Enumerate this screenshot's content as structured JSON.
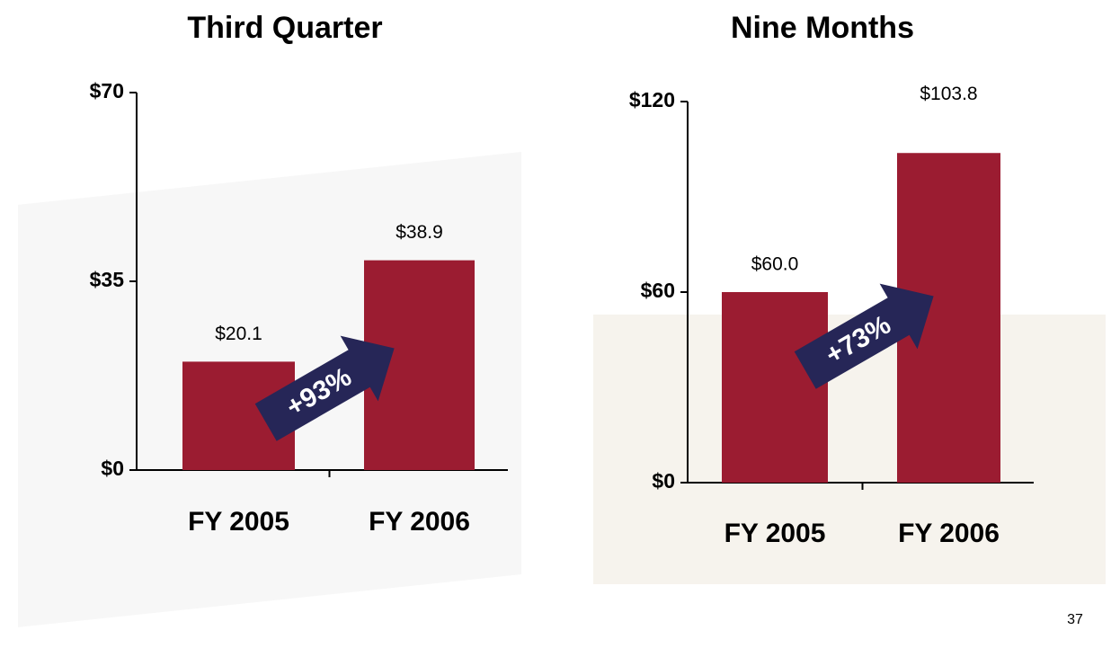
{
  "chart_data": [
    {
      "type": "bar",
      "title": "Third Quarter",
      "categories": [
        "FY 2005",
        "FY 2006"
      ],
      "values": [
        20.1,
        38.9
      ],
      "value_labels": [
        "$20.1",
        "$38.9"
      ],
      "color": "#9b1c31",
      "ylim": [
        0,
        70
      ],
      "yticks": [
        {
          "value": 0,
          "label": "$0"
        },
        {
          "value": 35,
          "label": "$35"
        },
        {
          "value": 70,
          "label": "$70"
        }
      ],
      "annotation": "+93%",
      "grid": false
    },
    {
      "type": "bar",
      "title": "Nine Months",
      "categories": [
        "FY 2005",
        "FY 2006"
      ],
      "values": [
        60.0,
        103.8
      ],
      "value_labels": [
        "$60.0",
        "$103.8"
      ],
      "color": "#9b1c31",
      "ylim": [
        0,
        120
      ],
      "yticks": [
        {
          "value": 0,
          "label": "$0"
        },
        {
          "value": 60,
          "label": "$60"
        },
        {
          "value": 120,
          "label": "$120"
        }
      ],
      "annotation": "+73%",
      "grid": false
    }
  ],
  "page_number": "37"
}
